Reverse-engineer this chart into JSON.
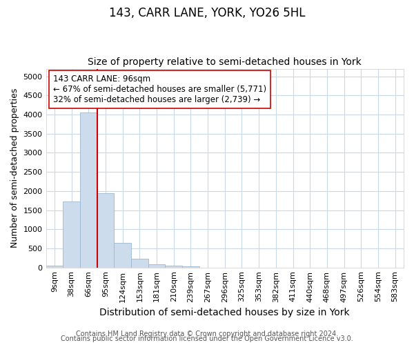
{
  "title": "143, CARR LANE, YORK, YO26 5HL",
  "subtitle": "Size of property relative to semi-detached houses in York",
  "xlabel": "Distribution of semi-detached houses by size in York",
  "ylabel": "Number of semi-detached properties",
  "bar_categories": [
    "9sqm",
    "38sqm",
    "66sqm",
    "95sqm",
    "124sqm",
    "153sqm",
    "181sqm",
    "210sqm",
    "239sqm",
    "267sqm",
    "296sqm",
    "325sqm",
    "353sqm",
    "382sqm",
    "411sqm",
    "440sqm",
    "468sqm",
    "497sqm",
    "526sqm",
    "554sqm",
    "583sqm"
  ],
  "bar_values": [
    50,
    1730,
    4050,
    1950,
    650,
    230,
    90,
    50,
    30,
    0,
    0,
    0,
    0,
    0,
    0,
    0,
    0,
    0,
    0,
    0,
    0
  ],
  "bar_color": "#ccdcec",
  "bar_edgecolor": "#9ab8d0",
  "bar_width": 1.0,
  "property_line_x": 2.5,
  "property_line_color": "#cc0000",
  "annotation_text": "143 CARR LANE: 96sqm\n← 67% of semi-detached houses are smaller (5,771)\n32% of semi-detached houses are larger (2,739) →",
  "annotation_box_edgecolor": "#cc0000",
  "annotation_box_facecolor": "#ffffff",
  "ylim": [
    0,
    5200
  ],
  "yticks": [
    0,
    500,
    1000,
    1500,
    2000,
    2500,
    3000,
    3500,
    4000,
    4500,
    5000
  ],
  "fig_background_color": "#ffffff",
  "plot_background_color": "#ffffff",
  "grid_color": "#c8d8e8",
  "footer_line1": "Contains HM Land Registry data © Crown copyright and database right 2024.",
  "footer_line2": "Contains public sector information licensed under the Open Government Licence v3.0.",
  "title_fontsize": 12,
  "subtitle_fontsize": 10,
  "xlabel_fontsize": 10,
  "ylabel_fontsize": 9,
  "tick_fontsize": 8,
  "annotation_fontsize": 8.5,
  "footer_fontsize": 7
}
